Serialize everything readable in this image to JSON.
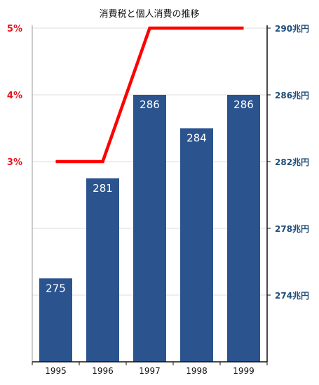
{
  "chart_data": {
    "type": "bar+line",
    "title": "消費税と個人消費の推移",
    "categories": [
      "1995",
      "1996",
      "1997",
      "1998",
      "1999"
    ],
    "bar_series": {
      "values": [
        275,
        281,
        286,
        284,
        286
      ],
      "labels": [
        "275",
        "281",
        "286",
        "284",
        "286"
      ],
      "axis": "right",
      "color": "#2b548f"
    },
    "line_series": {
      "values": [
        3,
        3,
        5,
        5,
        5
      ],
      "axis": "left",
      "color": "#ff0000"
    },
    "left_axis": {
      "ticks": [
        3,
        4,
        5
      ],
      "tick_labels": [
        "3%",
        "4%",
        "5%"
      ],
      "ylim": [
        0,
        5
      ],
      "color": "#e8131b"
    },
    "right_axis": {
      "ticks": [
        274,
        278,
        282,
        286,
        290
      ],
      "tick_labels": [
        "274兆円",
        "278兆円",
        "282兆円",
        "286兆円",
        "290兆円"
      ],
      "ylim": [
        270,
        290
      ],
      "color": "#1f4e79"
    },
    "grid": true,
    "legend": false
  }
}
